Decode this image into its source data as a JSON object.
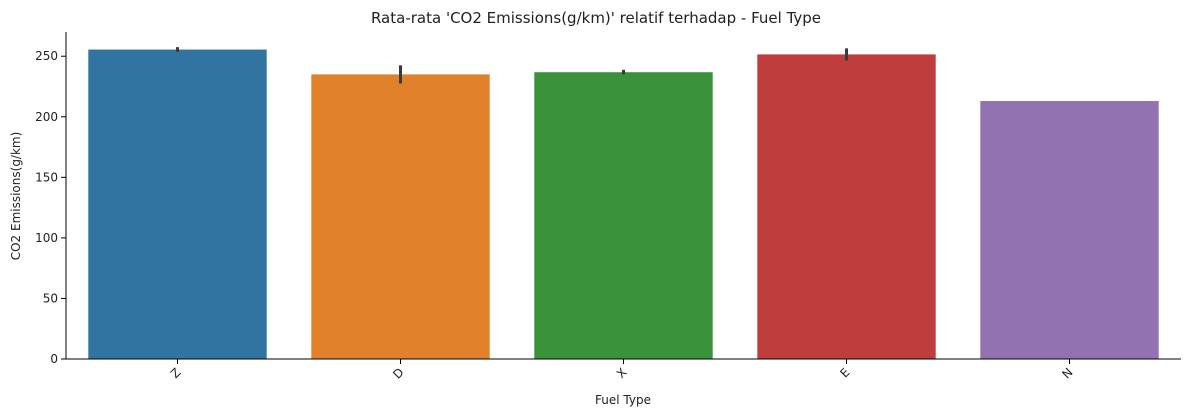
{
  "chart_data": {
    "type": "bar",
    "title": "Rata-rata 'CO2 Emissions(g/km)' relatif terhadap - Fuel Type",
    "xlabel": "Fuel Type",
    "ylabel": "CO2 Emissions(g/km)",
    "categories": [
      "Z",
      "D",
      "X",
      "E",
      "N"
    ],
    "values": [
      255.5,
      235.0,
      236.8,
      251.5,
      213.0
    ],
    "error_bars": [
      [
        253.5,
        257.5
      ],
      [
        227.5,
        242.5
      ],
      [
        235.0,
        238.8
      ],
      [
        246.5,
        256.5
      ],
      null
    ],
    "colors": [
      "#3274a1",
      "#e1812c",
      "#3a923a",
      "#c03d3e",
      "#9372b2"
    ],
    "ylim": [
      0,
      270
    ],
    "yticks": [
      0,
      50,
      100,
      150,
      200,
      250
    ],
    "xtick_rotation": -45,
    "grid": false
  }
}
